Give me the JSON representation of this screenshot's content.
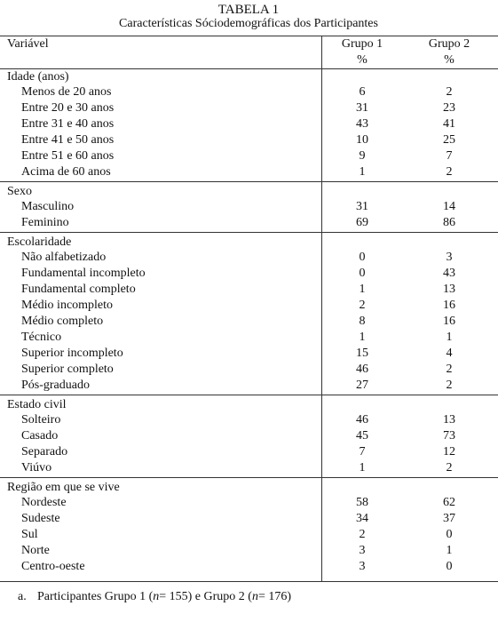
{
  "header": {
    "title": "TABELA 1",
    "subtitle": "Características Sóciodemográficas dos Participantes"
  },
  "table": {
    "columns": [
      "Variável",
      "Grupo 1",
      "Grupo 2"
    ],
    "units": [
      "%",
      "%"
    ],
    "sections": [
      {
        "title": "Idade (anos)",
        "rows": [
          [
            "Menos de 20 anos",
            6,
            2
          ],
          [
            "Entre 20 e 30 anos",
            31,
            23
          ],
          [
            "Entre 31 e 40 anos",
            43,
            41
          ],
          [
            "Entre 41 e 50 anos",
            10,
            25
          ],
          [
            "Entre 51 e 60 anos",
            9,
            7
          ],
          [
            "Acima de 60 anos",
            1,
            2
          ]
        ]
      },
      {
        "title": "Sexo",
        "rows": [
          [
            "Masculino",
            31,
            14
          ],
          [
            "Feminino",
            69,
            86
          ]
        ]
      },
      {
        "title": "Escolaridade",
        "rows": [
          [
            "Não alfabetizado",
            0,
            3
          ],
          [
            "Fundamental incompleto",
            0,
            43
          ],
          [
            "Fundamental completo",
            1,
            13
          ],
          [
            "Médio incompleto",
            2,
            16
          ],
          [
            "Médio completo",
            8,
            16
          ],
          [
            "Técnico",
            1,
            1
          ],
          [
            "Superior incompleto",
            15,
            4
          ],
          [
            "Superior completo",
            46,
            2
          ],
          [
            "Pós-graduado",
            27,
            2
          ]
        ]
      },
      {
        "title": "Estado civil",
        "rows": [
          [
            "Solteiro",
            46,
            13
          ],
          [
            "Casado",
            45,
            73
          ],
          [
            "Separado",
            7,
            12
          ],
          [
            "Viúvo",
            1,
            2
          ]
        ]
      },
      {
        "title": "Região em que se vive",
        "rows": [
          [
            "Nordeste",
            58,
            62
          ],
          [
            "Sudeste",
            34,
            37
          ],
          [
            "Sul",
            2,
            0
          ],
          [
            "Norte",
            3,
            1
          ],
          [
            "Centro-oeste",
            3,
            0
          ]
        ]
      }
    ]
  },
  "footnote": {
    "marker": "a.",
    "parts": [
      "Participantes Grupo 1 (",
      "n",
      "= 155) e Grupo 2 (",
      "n",
      "= 176)"
    ]
  }
}
